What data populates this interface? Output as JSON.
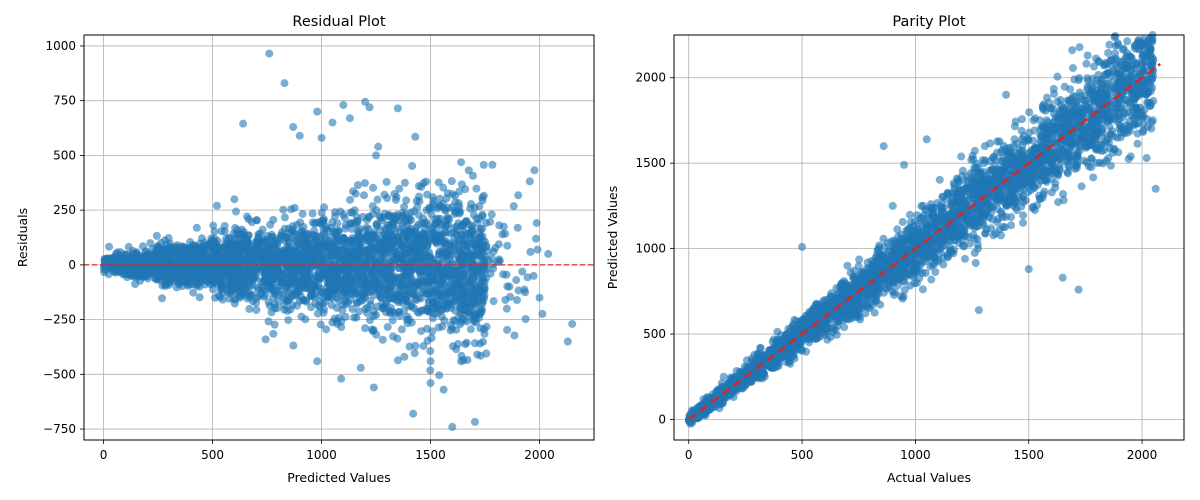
{
  "figure": {
    "point_color": "#1f77b4",
    "point_alpha": 0.6,
    "reference_color": "#d62728"
  },
  "chart_data": [
    {
      "type": "scatter",
      "title": "Residual Plot",
      "xlabel": "Predicted Values",
      "ylabel": "Residuals",
      "xlim": [
        -90,
        2250
      ],
      "ylim": [
        -800,
        1050
      ],
      "xticks": [
        0,
        500,
        1000,
        1500,
        2000
      ],
      "yticks": [
        -750,
        -500,
        -250,
        0,
        250,
        500,
        750,
        1000
      ],
      "grid": true,
      "reference_line": {
        "type": "horizontal",
        "y": 0,
        "style": "dashed"
      },
      "points_note": "Dense cloud of several thousand points centered on residual 0; spread widens as predicted value increases.",
      "series": [
        {
          "x": [
            5,
            60,
            150,
            300,
            450,
            520,
            600,
            640,
            760,
            830,
            870,
            900,
            980,
            1000,
            1050,
            1100,
            1130,
            1200,
            1220,
            1260,
            1350,
            1430,
            1480,
            1500,
            1560,
            1600,
            1640,
            1700,
            1850,
            2000,
            2040,
            2130,
            2150,
            1380,
            1420,
            1240,
            1090,
            980,
            1250,
            1500,
            1180
          ],
          "y": [
            0,
            30,
            20,
            -40,
            60,
            270,
            300,
            645,
            965,
            830,
            630,
            590,
            700,
            580,
            650,
            730,
            670,
            745,
            720,
            540,
            715,
            585,
            380,
            -540,
            -570,
            -740,
            -440,
            -240,
            -200,
            -150,
            50,
            -350,
            -270,
            -420,
            -680,
            -560,
            -520,
            -440,
            500,
            -440,
            -470
          ]
        }
      ]
    },
    {
      "type": "scatter",
      "title": "Parity Plot",
      "xlabel": "Actual Values",
      "ylabel": "Predicted Values",
      "xlim": [
        -65,
        2185
      ],
      "ylim": [
        -120,
        2250
      ],
      "xticks": [
        0,
        500,
        1000,
        1500,
        2000
      ],
      "yticks": [
        0,
        500,
        1000,
        1500,
        2000
      ],
      "grid": true,
      "reference_line": {
        "type": "identity",
        "from": 0,
        "to": 2080,
        "style": "dashed"
      },
      "points_note": "Dense cloud along the identity line; spread grows with value.",
      "series": [
        {
          "x": [
            0,
            100,
            300,
            500,
            700,
            860,
            950,
            1050,
            1280,
            1400,
            1500,
            1650,
            1720,
            1760,
            1850,
            1870,
            1950,
            2020,
            2060,
            1100,
            900,
            1600
          ],
          "y": [
            0,
            80,
            250,
            1010,
            900,
            1600,
            1490,
            1640,
            640,
            1900,
            880,
            830,
            760,
            2130,
            2145,
            1560,
            1540,
            1530,
            1350,
            1070,
            1250,
            1440
          ]
        }
      ]
    }
  ]
}
